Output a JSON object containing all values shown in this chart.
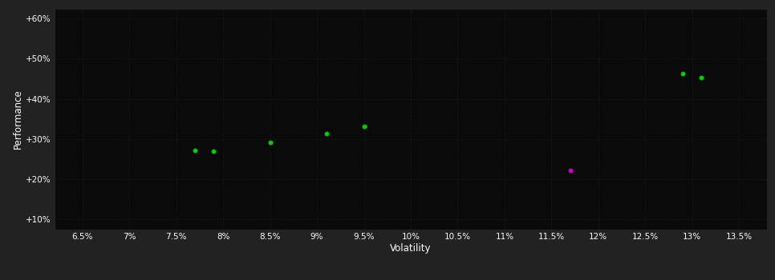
{
  "outer_background": "#222222",
  "plot_background": "#0a0a0a",
  "grid_color": "#2a2a2a",
  "x_label": "Volatility",
  "y_label": "Performance",
  "x_ticks": [
    0.065,
    0.07,
    0.075,
    0.08,
    0.085,
    0.09,
    0.095,
    0.1,
    0.105,
    0.11,
    0.115,
    0.12,
    0.125,
    0.13,
    0.135
  ],
  "y_ticks": [
    0.1,
    0.2,
    0.3,
    0.4,
    0.5,
    0.6
  ],
  "y_tick_labels": [
    "+10%",
    "+20%",
    "+30%",
    "+40%",
    "+50%",
    "+60%"
  ],
  "x_tick_labels": [
    "6.5%",
    "7%",
    "7.5%",
    "8%",
    "8.5%",
    "9%",
    "9.5%",
    "10%",
    "10.5%",
    "11%",
    "11.5%",
    "12%",
    "12.5%",
    "13%",
    "13.5%"
  ],
  "xlim": [
    0.062,
    0.138
  ],
  "ylim": [
    0.075,
    0.625
  ],
  "green_points": [
    [
      0.077,
      0.272
    ],
    [
      0.079,
      0.27
    ],
    [
      0.085,
      0.291
    ],
    [
      0.091,
      0.313
    ],
    [
      0.095,
      0.332
    ],
    [
      0.129,
      0.462
    ],
    [
      0.131,
      0.453
    ]
  ],
  "magenta_points": [
    [
      0.117,
      0.222
    ]
  ],
  "green_color": "#00cc00",
  "magenta_color": "#cc00cc",
  "tick_color": "#ffffff",
  "label_color": "#ffffff",
  "grid_linestyle": ":",
  "grid_alpha": 0.6,
  "point_size": 18,
  "point_zorder": 5
}
